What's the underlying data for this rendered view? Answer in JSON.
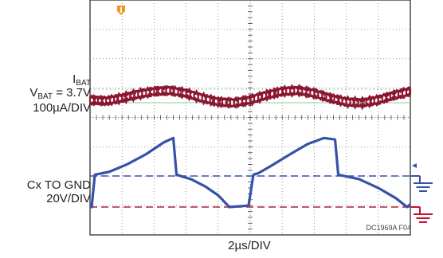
{
  "chart_data": {
    "type": "line",
    "title": "",
    "xlabel": "2µs/DIV",
    "figure_code": "DC1969A F04",
    "grid": true,
    "grid_divisions": {
      "x": 10,
      "y": 8
    },
    "x_range_us": [
      0,
      20
    ],
    "series": [
      {
        "name": "",
        "label_lines": [
          "I",
          "BAT",
          "V",
          "BAT",
          " = 3.7V",
          "100µA/DIV"
        ],
        "color": "#8b1631",
        "units": "divisions",
        "x_us": [
          0,
          1,
          2,
          3,
          4,
          5,
          6,
          7,
          8,
          9,
          10,
          11,
          12,
          13,
          14,
          15,
          16,
          17,
          18,
          19,
          20
        ],
        "y": [
          -0.15,
          -0.2,
          -0.05,
          0.15,
          0.3,
          0.35,
          0.2,
          -0.05,
          -0.25,
          -0.3,
          -0.15,
          0.1,
          0.3,
          0.35,
          0.2,
          -0.05,
          -0.25,
          -0.3,
          -0.15,
          0.1,
          0.3
        ]
      },
      {
        "name": "",
        "label_lines": [
          "Cx TO GND",
          "20V/DIV"
        ],
        "color": "#3552a8",
        "units": "volts",
        "x_us": [
          0,
          0.1,
          0.3,
          1.2,
          2.3,
          3.5,
          4.6,
          5.2,
          5.4,
          6.3,
          7.2,
          8.0,
          8.7,
          9.9,
          10.2,
          10.5,
          11.3,
          12.5,
          13.6,
          14.6,
          15.3,
          15.5,
          16.8,
          18.0,
          19.1,
          19.8,
          20
        ],
        "y": [
          0,
          0,
          22,
          24,
          29,
          36,
          44,
          47,
          22,
          19,
          14,
          8,
          0,
          1,
          22,
          23,
          28,
          36,
          43,
          47,
          46,
          22,
          19,
          13,
          6,
          0,
          2
        ]
      }
    ],
    "markers": [
      {
        "name": "trigger",
        "color": "#f7941d"
      },
      {
        "name": "ground-reference-cx",
        "color": "#3552a8"
      },
      {
        "name": "ground-reference-ibat",
        "color": "#c8102e"
      }
    ]
  }
}
